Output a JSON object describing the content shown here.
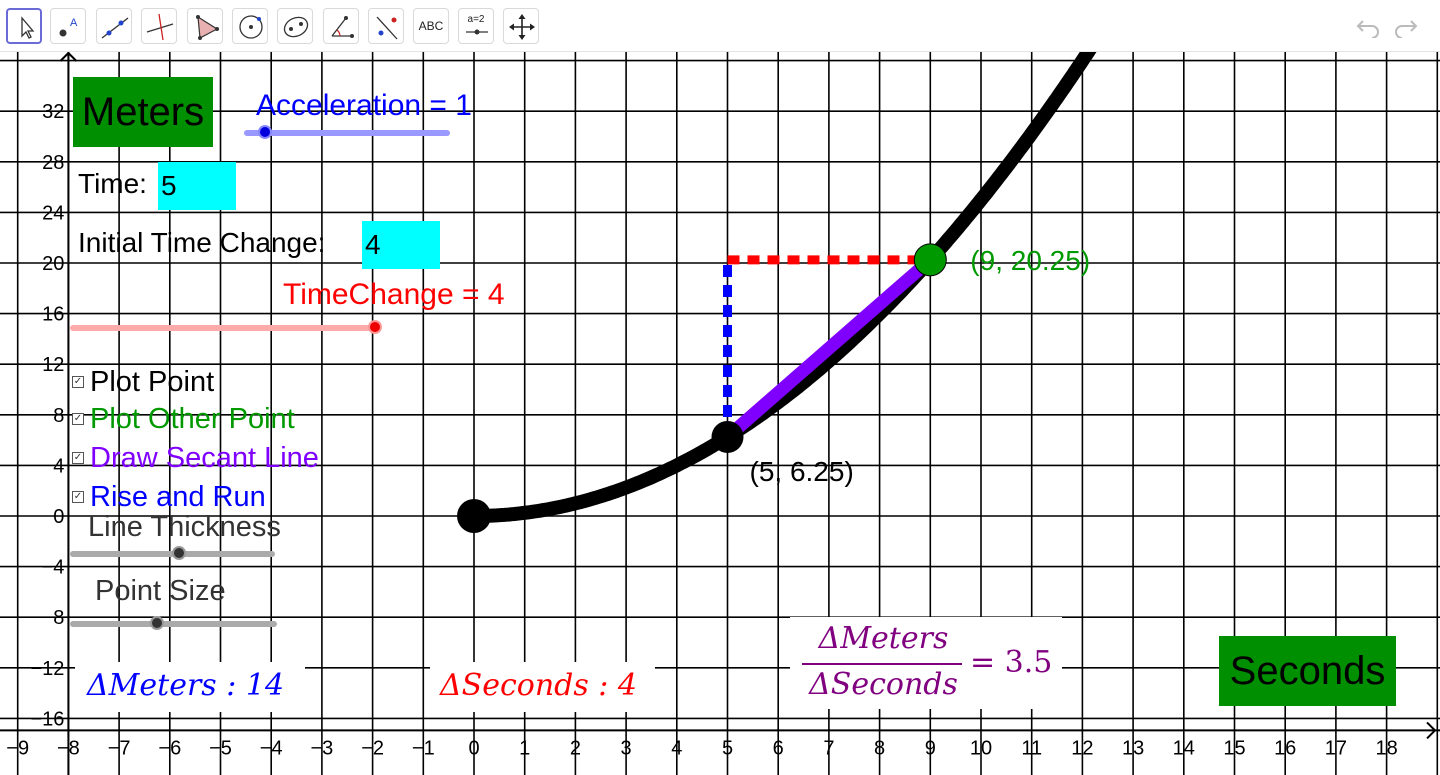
{
  "toolbar": {
    "tools": [
      {
        "name": "move-tool",
        "selected": true
      },
      {
        "name": "point-tool"
      },
      {
        "name": "line-tool"
      },
      {
        "name": "perpendicular-line-tool"
      },
      {
        "name": "polygon-tool"
      },
      {
        "name": "circle-tool"
      },
      {
        "name": "ellipse-tool"
      },
      {
        "name": "angle-tool"
      },
      {
        "name": "reflect-tool"
      },
      {
        "name": "text-tool",
        "label": "ABC"
      },
      {
        "name": "slider-tool",
        "label": "a=2"
      },
      {
        "name": "move-graphics-view-tool"
      }
    ],
    "undo_icon": "undo-icon",
    "redo_icon": "redo-icon"
  },
  "graph": {
    "x_range": [
      -9.3,
      19.1
    ],
    "y_range": [
      -16.5,
      36.2
    ],
    "x_ticks": [
      "−9",
      "−8",
      "−7",
      "−6",
      "−5",
      "−4",
      "−3",
      "−2",
      "−1",
      "0",
      "1",
      "2",
      "3",
      "4",
      "5",
      "6",
      "7",
      "8",
      "9",
      "10",
      "11",
      "12",
      "13",
      "14",
      "15",
      "16",
      "17",
      "18"
    ],
    "y_ticks": [
      "−16",
      "−12",
      "−8",
      "−4",
      "0",
      "4",
      "8",
      "12",
      "16",
      "20",
      "24",
      "28",
      "32"
    ],
    "grid": true,
    "curve": {
      "equation": "y = 0.25·x²",
      "from": 0,
      "color": "#000000"
    },
    "point_a": {
      "x": 5,
      "y": 6.25,
      "label": "(5, 6.25)",
      "color": "#000000"
    },
    "point_b": {
      "x": 9,
      "y": 20.25,
      "label": "(9, 20.25)",
      "color": "#009900"
    },
    "origin_point": {
      "x": 0,
      "y": 0
    },
    "secant_color": "#7f00ff",
    "rise_color": "#0000ff",
    "run_color": "#ff0000"
  },
  "labels": {
    "meters": "Meters",
    "seconds": "Seconds",
    "acceleration": "Acceleration = 1",
    "time_label": "Time:",
    "time_value": "5",
    "initial_change_label": "Initial Time Change:",
    "initial_change_value": "4",
    "time_change": "TimeChange = 4",
    "line_thickness": "Line Thickness",
    "point_size": "Point Size",
    "delta_meters": "ΔMeters : 14",
    "delta_seconds": "ΔSeconds : 4",
    "frac_num": "ΔMeters",
    "frac_den": "ΔSeconds",
    "frac_eq": "= 3.5"
  },
  "checkboxes": [
    {
      "label": "Plot Point",
      "color": "#000000",
      "checked": true
    },
    {
      "label": "Plot Other Point",
      "color": "#009900",
      "checked": true
    },
    {
      "label": "Draw Secant Line",
      "color": "#7f00ff",
      "checked": true
    },
    {
      "label": "Rise and Run",
      "color": "#0000ff",
      "checked": true
    }
  ],
  "sliders": {
    "acceleration": {
      "value": 1,
      "fraction": 0.1,
      "color": "#0000ff"
    },
    "time_change": {
      "value": 4,
      "fraction": 1.0,
      "color": "#ff0000"
    },
    "line_thickness": {
      "fraction": 0.53,
      "color": "#555555"
    },
    "point_size": {
      "fraction": 0.42,
      "color": "#555555"
    }
  }
}
